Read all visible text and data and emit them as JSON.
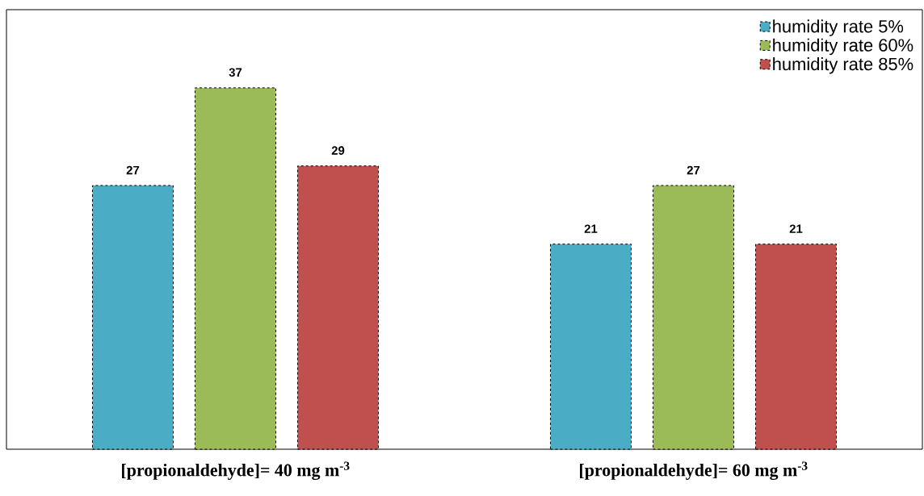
{
  "chart_data": {
    "type": "bar",
    "categories": [
      "[propionaldehyde]= 40 mg m$^{-3}$",
      "[propionaldehyde]= 60 mg m$^{-3}$"
    ],
    "series": [
      {
        "name": "humidity rate 5%",
        "color": "#4bacc6",
        "values": [
          27,
          21
        ]
      },
      {
        "name": "humidity rate 60%",
        "color": "#9bbb59",
        "values": [
          37,
          27
        ]
      },
      {
        "name": "humidity rate 85%",
        "color": "#c0504d",
        "values": [
          29,
          21
        ]
      }
    ],
    "ylim": [
      0,
      45
    ],
    "tick_labels": "x",
    "data_labels": true,
    "legend": "top right"
  }
}
